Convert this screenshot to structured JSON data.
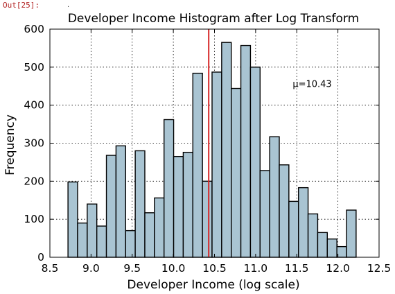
{
  "cell_prompt": "Out[25]:",
  "cell_mark": ".",
  "chart_data": {
    "type": "bar",
    "title": "Developer Income Histogram after Log Transform",
    "xlabel": "Developer Income (log scale)",
    "ylabel": "Frequency",
    "xlim": [
      8.5,
      12.5
    ],
    "ylim": [
      0,
      600
    ],
    "xticks": [
      "8.5",
      "9.0",
      "9.5",
      "10.0",
      "10.5",
      "11.0",
      "11.5",
      "12.0",
      "12.5"
    ],
    "yticks": [
      "0",
      "100",
      "200",
      "300",
      "400",
      "500",
      "600"
    ],
    "grid": true,
    "bin_start": 8.72,
    "bin_width": 0.1167,
    "values": [
      198,
      90,
      140,
      82,
      268,
      293,
      70,
      280,
      117,
      156,
      362,
      265,
      276,
      484,
      200,
      487,
      565,
      444,
      557,
      500,
      228,
      317,
      243,
      147,
      183,
      114,
      65,
      48,
      28,
      124
    ],
    "mean_line": 10.43,
    "annotation": "μ=10.43",
    "bar_color": "#a9c4d2",
    "bar_edge": "#000000",
    "mean_color": "#d62728"
  }
}
